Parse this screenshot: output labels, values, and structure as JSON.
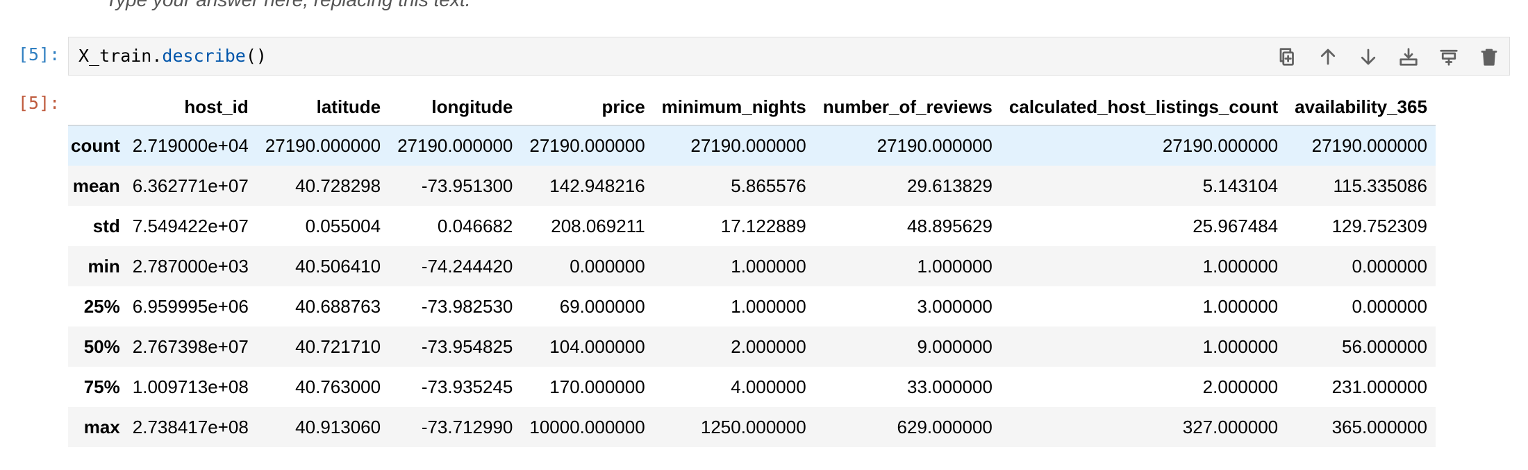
{
  "previous_cell": {
    "text": "Type your answer here, replacing this text."
  },
  "input_cell": {
    "prompt": "[5]:",
    "code_object": "X_train",
    "code_dot": ".",
    "code_method": "describe",
    "code_parens": "()"
  },
  "output_cell": {
    "prompt": "[5]:"
  },
  "toolbar": {
    "buttons": [
      {
        "name": "duplicate-cell",
        "icon": "duplicate-icon"
      },
      {
        "name": "move-up",
        "icon": "arrow-up-icon"
      },
      {
        "name": "move-down",
        "icon": "arrow-down-icon"
      },
      {
        "name": "insert-cell-above",
        "icon": "insert-above-icon"
      },
      {
        "name": "insert-cell-below",
        "icon": "insert-below-icon"
      },
      {
        "name": "delete-cell",
        "icon": "trash-icon"
      }
    ]
  },
  "table": {
    "columns": [
      "host_id",
      "latitude",
      "longitude",
      "price",
      "minimum_nights",
      "number_of_reviews",
      "calculated_host_listings_count",
      "availability_365"
    ],
    "rows": [
      {
        "index": "count",
        "values": [
          "2.719000e+04",
          "27190.000000",
          "27190.000000",
          "27190.000000",
          "27190.000000",
          "27190.000000",
          "27190.000000",
          "27190.000000"
        ]
      },
      {
        "index": "mean",
        "values": [
          "6.362771e+07",
          "40.728298",
          "-73.951300",
          "142.948216",
          "5.865576",
          "29.613829",
          "5.143104",
          "115.335086"
        ]
      },
      {
        "index": "std",
        "values": [
          "7.549422e+07",
          "0.055004",
          "0.046682",
          "208.069211",
          "17.122889",
          "48.895629",
          "25.967484",
          "129.752309"
        ]
      },
      {
        "index": "min",
        "values": [
          "2.787000e+03",
          "40.506410",
          "-74.244420",
          "0.000000",
          "1.000000",
          "1.000000",
          "1.000000",
          "0.000000"
        ]
      },
      {
        "index": "25%",
        "values": [
          "6.959995e+06",
          "40.688763",
          "-73.982530",
          "69.000000",
          "1.000000",
          "3.000000",
          "1.000000",
          "0.000000"
        ]
      },
      {
        "index": "50%",
        "values": [
          "2.767398e+07",
          "40.721710",
          "-73.954825",
          "104.000000",
          "2.000000",
          "9.000000",
          "1.000000",
          "56.000000"
        ]
      },
      {
        "index": "75%",
        "values": [
          "1.009713e+08",
          "40.763000",
          "-73.935245",
          "170.000000",
          "4.000000",
          "33.000000",
          "2.000000",
          "231.000000"
        ]
      },
      {
        "index": "max",
        "values": [
          "2.738417e+08",
          "40.913060",
          "-73.712990",
          "10000.000000",
          "1250.000000",
          "629.000000",
          "327.000000",
          "365.000000"
        ]
      }
    ]
  }
}
